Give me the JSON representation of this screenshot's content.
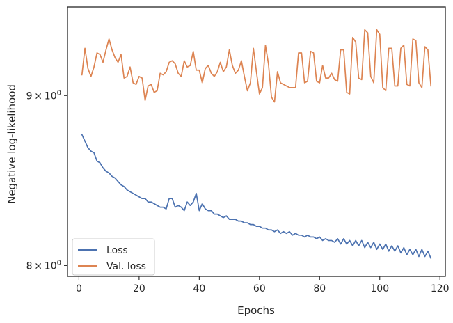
{
  "chart_data": {
    "type": "line",
    "xlabel": "Epochs",
    "ylabel": "Negative log-likelihood",
    "xlim": [
      -3.8,
      121.8
    ],
    "ylim": [
      7.94,
      9.57
    ],
    "yscale": "log",
    "grid": false,
    "legend_position": "lower-left",
    "x_ticks": [
      {
        "value": 0,
        "label": "0"
      },
      {
        "value": 20,
        "label": "20"
      },
      {
        "value": 40,
        "label": "40"
      },
      {
        "value": 60,
        "label": "60"
      },
      {
        "value": 80,
        "label": "80"
      },
      {
        "value": 100,
        "label": "100"
      },
      {
        "value": 120,
        "label": "120"
      }
    ],
    "y_ticks": [
      {
        "value": 8,
        "label_base": "8",
        "label_times": "×",
        "label_ten": "10",
        "label_exp": "0"
      },
      {
        "value": 9,
        "label_base": "9",
        "label_times": "×",
        "label_ten": "10",
        "label_exp": "0"
      }
    ],
    "series": [
      {
        "name": "Loss",
        "color": "#4c72b0",
        "x": [
          1,
          2,
          3,
          4,
          5,
          6,
          7,
          8,
          9,
          10,
          11,
          12,
          13,
          14,
          15,
          16,
          17,
          18,
          19,
          20,
          21,
          22,
          23,
          24,
          25,
          26,
          27,
          28,
          29,
          30,
          31,
          32,
          33,
          34,
          35,
          36,
          37,
          38,
          39,
          40,
          41,
          42,
          43,
          44,
          45,
          46,
          47,
          48,
          49,
          50,
          51,
          52,
          53,
          54,
          55,
          56,
          57,
          58,
          59,
          60,
          61,
          62,
          63,
          64,
          65,
          66,
          67,
          68,
          69,
          70,
          71,
          72,
          73,
          74,
          75,
          76,
          77,
          78,
          79,
          80,
          81,
          82,
          83,
          84,
          85,
          86,
          87,
          88,
          89,
          90,
          91,
          92,
          93,
          94,
          95,
          96,
          97,
          98,
          99,
          100,
          101,
          102,
          103,
          104,
          105,
          106,
          107,
          108,
          109,
          110,
          111,
          112,
          113,
          114,
          115,
          116,
          117
        ],
        "values": [
          8.76,
          8.72,
          8.68,
          8.66,
          8.65,
          8.6,
          8.59,
          8.56,
          8.54,
          8.53,
          8.51,
          8.5,
          8.48,
          8.46,
          8.45,
          8.43,
          8.42,
          8.41,
          8.4,
          8.39,
          8.38,
          8.38,
          8.36,
          8.36,
          8.35,
          8.34,
          8.33,
          8.33,
          8.32,
          8.38,
          8.38,
          8.33,
          8.34,
          8.33,
          8.31,
          8.36,
          8.34,
          8.36,
          8.41,
          8.31,
          8.35,
          8.32,
          8.31,
          8.31,
          8.29,
          8.29,
          8.28,
          8.27,
          8.28,
          8.26,
          8.26,
          8.26,
          8.25,
          8.25,
          8.24,
          8.24,
          8.23,
          8.23,
          8.22,
          8.22,
          8.21,
          8.21,
          8.2,
          8.2,
          8.19,
          8.2,
          8.18,
          8.19,
          8.18,
          8.19,
          8.17,
          8.18,
          8.17,
          8.17,
          8.16,
          8.17,
          8.16,
          8.16,
          8.15,
          8.16,
          8.14,
          8.15,
          8.14,
          8.14,
          8.13,
          8.15,
          8.12,
          8.15,
          8.12,
          8.14,
          8.11,
          8.14,
          8.11,
          8.14,
          8.1,
          8.13,
          8.1,
          8.13,
          8.09,
          8.12,
          8.09,
          8.12,
          8.08,
          8.11,
          8.08,
          8.11,
          8.07,
          8.1,
          8.06,
          8.09,
          8.06,
          8.09,
          8.05,
          8.09,
          8.05,
          8.08,
          8.04
        ]
      },
      {
        "name": "Val. loss",
        "color": "#dd8452",
        "x": [
          1,
          2,
          3,
          4,
          5,
          6,
          7,
          8,
          9,
          10,
          11,
          12,
          13,
          14,
          15,
          16,
          17,
          18,
          19,
          20,
          21,
          22,
          23,
          24,
          25,
          26,
          27,
          28,
          29,
          30,
          31,
          32,
          33,
          34,
          35,
          36,
          37,
          38,
          39,
          40,
          41,
          42,
          43,
          44,
          45,
          46,
          47,
          48,
          49,
          50,
          51,
          52,
          53,
          54,
          55,
          56,
          57,
          58,
          59,
          60,
          61,
          62,
          63,
          64,
          65,
          66,
          67,
          68,
          69,
          70,
          71,
          72,
          73,
          74,
          75,
          76,
          77,
          78,
          79,
          80,
          81,
          82,
          83,
          84,
          85,
          86,
          87,
          88,
          89,
          90,
          91,
          92,
          93,
          94,
          95,
          96,
          97,
          98,
          99,
          100,
          101,
          102,
          103,
          104,
          105,
          106,
          107,
          108,
          109,
          110,
          111,
          112,
          113,
          114,
          115,
          116,
          117
        ],
        "values": [
          9.13,
          9.3,
          9.17,
          9.12,
          9.18,
          9.27,
          9.26,
          9.21,
          9.29,
          9.36,
          9.29,
          9.24,
          9.21,
          9.26,
          9.11,
          9.12,
          9.18,
          9.08,
          9.07,
          9.12,
          9.11,
          8.97,
          9.06,
          9.07,
          9.02,
          9.03,
          9.14,
          9.13,
          9.15,
          9.21,
          9.22,
          9.2,
          9.14,
          9.12,
          9.22,
          9.18,
          9.19,
          9.28,
          9.16,
          9.16,
          9.08,
          9.17,
          9.19,
          9.14,
          9.12,
          9.15,
          9.21,
          9.15,
          9.18,
          9.29,
          9.19,
          9.14,
          9.16,
          9.22,
          9.12,
          9.03,
          9.08,
          9.3,
          9.15,
          9.01,
          9.05,
          9.32,
          9.2,
          8.99,
          8.96,
          9.15,
          9.08,
          9.07,
          9.06,
          9.05,
          9.05,
          9.05,
          9.27,
          9.27,
          9.08,
          9.09,
          9.28,
          9.27,
          9.09,
          9.08,
          9.19,
          9.11,
          9.11,
          9.14,
          9.1,
          9.09,
          9.29,
          9.29,
          9.02,
          9.01,
          9.37,
          9.34,
          9.11,
          9.1,
          9.42,
          9.4,
          9.12,
          9.08,
          9.42,
          9.39,
          9.05,
          9.03,
          9.3,
          9.3,
          9.06,
          9.06,
          9.3,
          9.32,
          9.07,
          9.06,
          9.36,
          9.35,
          9.08,
          9.05,
          9.31,
          9.29,
          9.06
        ]
      }
    ]
  }
}
